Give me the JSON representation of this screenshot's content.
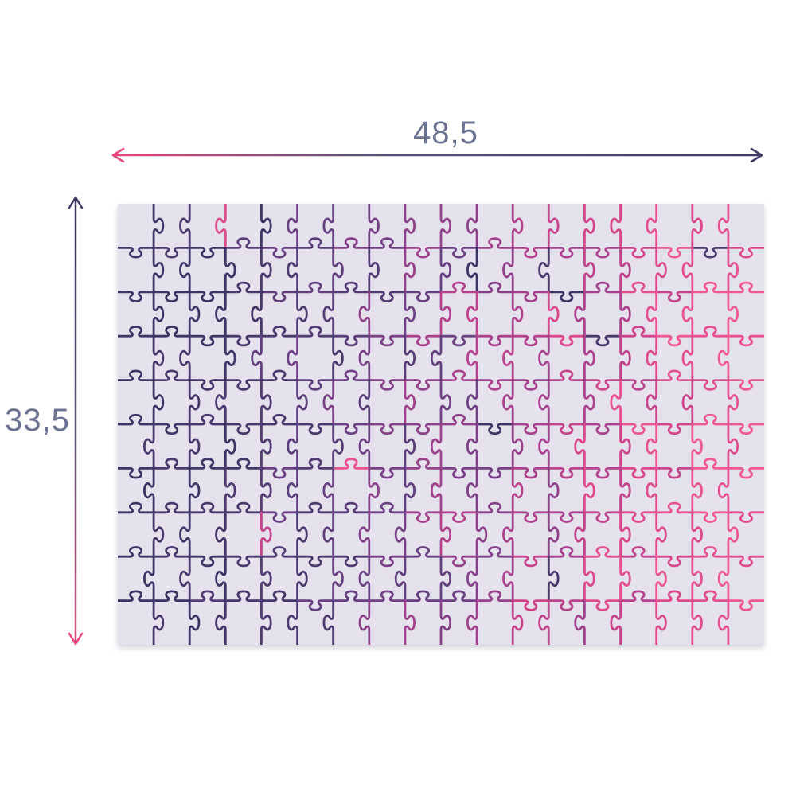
{
  "dimensions": {
    "width_label": "48,5",
    "height_label": "33,5",
    "label_color": "#6b7390",
    "arrow_pink": "#e9467f",
    "arrow_mid": "#5b5278",
    "arrow_navy": "#403b64",
    "arrow_thickness": 2.5
  },
  "puzzle": {
    "rows": 10,
    "cols": 18,
    "piece_count": 180,
    "board_color": "#e5e2ed",
    "line_width": 2.8,
    "gradient_stops": [
      "#3b3564",
      "#473a6c",
      "#6b4183",
      "#a3428c",
      "#d8468b",
      "#ef5a95"
    ],
    "color_jitter": 0.3,
    "outlier_chance": 0.05,
    "seed": 7
  }
}
